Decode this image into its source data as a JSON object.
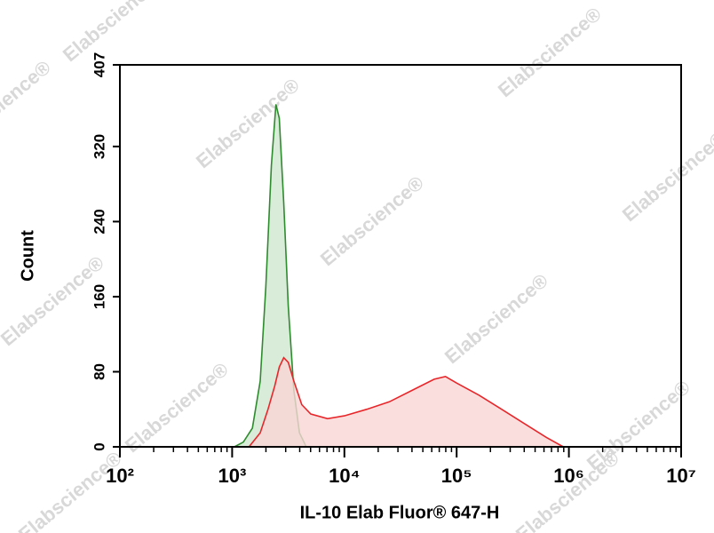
{
  "chart_data": {
    "type": "histogram-overlay",
    "x_label": "IL-10 Elab Fluor® 647-H",
    "y_label": "Count",
    "watermark": "Elabscience®",
    "xscale": "log",
    "xlim": [
      100,
      10000000
    ],
    "xticks": [
      {
        "value": 100,
        "label": "10²"
      },
      {
        "value": 1000,
        "label": "10³"
      },
      {
        "value": 10000,
        "label": "10⁴"
      },
      {
        "value": 100000,
        "label": "10⁵"
      },
      {
        "value": 1000000,
        "label": "10⁶"
      },
      {
        "value": 10000000,
        "label": "10⁷"
      }
    ],
    "ylim": [
      0,
      407
    ],
    "yticks": [
      0,
      80,
      160,
      240,
      320,
      407
    ],
    "series": [
      {
        "color": "#2e8b2e",
        "fill": "#cfe6cf",
        "x": [
          1047,
          1259,
          1514,
          1778,
          1995,
          2239,
          2455,
          2630,
          2884,
          3162,
          3548,
          3981,
          4571
        ],
        "values": [
          0,
          5,
          20,
          70,
          170,
          300,
          365,
          350,
          260,
          150,
          60,
          15,
          0
        ]
      },
      {
        "color": "#e8262a",
        "fill": "#f9d6d6",
        "x": [
          1413,
          1778,
          2089,
          2399,
          2630,
          2884,
          3162,
          3548,
          4169,
          5012,
          7079,
          10000,
          15849,
          25119,
          39811,
          63096,
          79433,
          100000,
          158489,
          251189,
          398107,
          630957,
          891251
        ],
        "values": [
          0,
          15,
          40,
          65,
          85,
          95,
          90,
          70,
          45,
          35,
          30,
          33,
          40,
          48,
          60,
          72,
          75,
          68,
          55,
          40,
          25,
          10,
          0
        ]
      }
    ]
  }
}
